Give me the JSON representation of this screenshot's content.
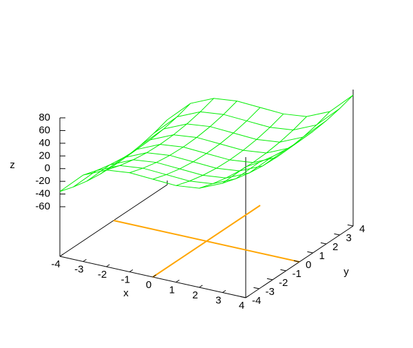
{
  "chart_data": {
    "type": "surface",
    "x_label": "x",
    "y_label": "y",
    "z_label": "z",
    "x": [
      -4,
      -3,
      -2,
      -1,
      0,
      1,
      2,
      3,
      4
    ],
    "y": [
      -4,
      -3,
      -2,
      -1,
      0,
      1,
      2,
      3,
      4
    ],
    "z": [
      [
        -36,
        -2,
        14,
        18,
        16,
        14,
        18,
        34,
        68
      ],
      [
        -43,
        -9,
        7,
        11,
        9,
        7,
        11,
        27,
        61
      ],
      [
        -48,
        -14,
        2,
        6,
        4,
        2,
        6,
        22,
        56
      ],
      [
        -51,
        -17,
        -1,
        3,
        1,
        -1,
        3,
        19,
        53
      ],
      [
        -52,
        -18,
        -2,
        2,
        0,
        -2,
        2,
        18,
        52
      ],
      [
        -51,
        -17,
        -1,
        3,
        1,
        -1,
        3,
        19,
        53
      ],
      [
        -48,
        -14,
        2,
        6,
        4,
        2,
        6,
        22,
        56
      ],
      [
        -43,
        -9,
        7,
        11,
        9,
        7,
        11,
        27,
        61
      ],
      [
        -36,
        -2,
        14,
        18,
        16,
        14,
        18,
        34,
        68
      ]
    ],
    "color": "#00ee00",
    "zeroaxis_color": "#ffa500",
    "xlim": [
      -4,
      4
    ],
    "ylim": [
      -4,
      4
    ],
    "zlim": [
      -60,
      80
    ],
    "xticks": [
      -4,
      -3,
      -2,
      -1,
      0,
      1,
      2,
      3,
      4
    ],
    "yticks": [
      -4,
      -3,
      -2,
      -1,
      0,
      1,
      2,
      3,
      4
    ],
    "zticks": [
      -60,
      -40,
      -20,
      0,
      20,
      40,
      60,
      80
    ]
  }
}
